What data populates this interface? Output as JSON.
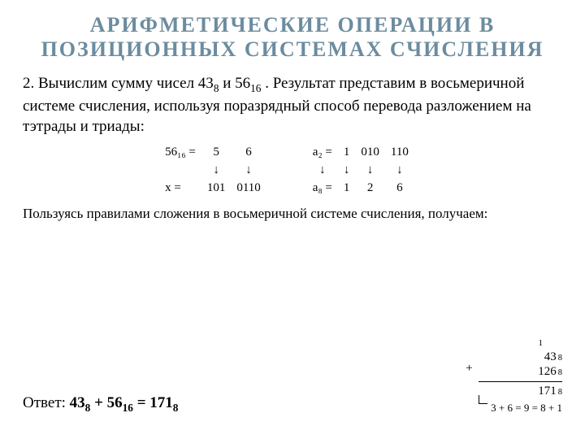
{
  "title": "АРИФМЕТИЧЕСКИЕ ОПЕРАЦИИ В ПОЗИЦИОННЫХ СИСТЕМАХ СЧИСЛЕНИЯ",
  "problem_pre": "2. Вычислим сумму чисел  43",
  "problem_sub1": "8",
  "problem_mid1": "  и  56",
  "problem_sub2": "16",
  "problem_post": " . Результат представим в восьмеричной системе счисления, используя поразрядный способ перевода разложением на тэтрады и триады:",
  "conv": {
    "left": {
      "r1_label": "56₁₆  =",
      "r1_c1": "5",
      "r1_c2": "6",
      "r2_c1": "↓",
      "r2_c2": "↓",
      "r3_label": "x  =",
      "r3_c1": "101",
      "r3_c2": "0110"
    },
    "right": {
      "r1_label": "a₂  =",
      "r1_c1": "1",
      "r1_c2": "010",
      "r1_c3": "110",
      "r2_c1": "↓",
      "r2_c2": "↓",
      "r2_c3": "↓",
      "r2_c4": "↓",
      "r3_label": "a₈  =",
      "r3_c1": "1",
      "r3_c2": "2",
      "r3_c3": "6"
    }
  },
  "note": "Пользуясь правилами сложения в восьмеричной системе счисления, получаем:",
  "answer": {
    "pre": "Ответ:  ",
    "n1": "43",
    "s1": "8",
    "plus": "  +  ",
    "n2": "56",
    "s2": "16",
    "eq": "  =  ",
    "n3": "171",
    "s3": "8"
  },
  "addition": {
    "carry": "1",
    "a": "43",
    "a_sub": "8",
    "b": "126",
    "b_sub": "8",
    "sum": "171",
    "sum_sub": "8",
    "plus": "+",
    "explain": "3 + 6 = 9 = 8 + 1"
  },
  "colors": {
    "title": "#6c8c9f",
    "text": "#000000",
    "background": "#ffffff"
  }
}
